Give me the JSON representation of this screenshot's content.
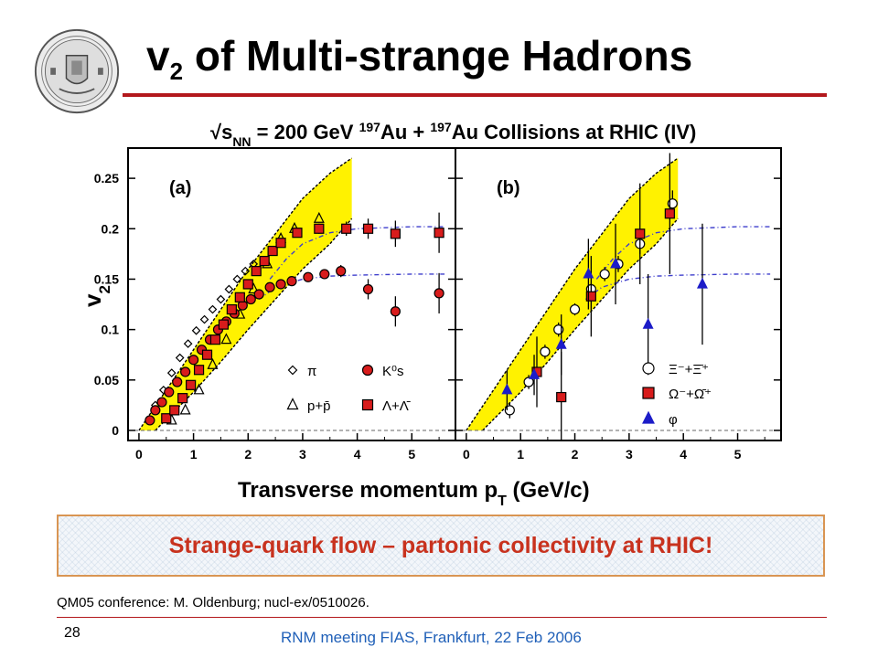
{
  "slide": {
    "title_main": "v",
    "title_sub": "2",
    "title_rest": " of Multi-strange Hadrons",
    "callout": "Strange-quark flow – partonic collectivity at RHIC!",
    "citation": "QM05 conference: M. Oldenburg; nucl-ex/0510026.",
    "page_number": "28",
    "footer": "RNM meeting FIAS, Frankfurt, 22 Feb 2006",
    "colors": {
      "accent_rule": "#b3181c",
      "callout_text": "#c8321e",
      "callout_border": "#d99553",
      "footer_text": "#2060b8"
    },
    "logo": "university-seal"
  },
  "chart_data": {
    "type": "scatter",
    "title": "√s_NN = 200 GeV 197Au + 197Au Collisions at RHIC (IV)",
    "title_parts": {
      "sqrt": "√s",
      "nn": "NN",
      "energy": " = 200 GeV ",
      "a1": "197",
      "au1": "Au + ",
      "a2": "197",
      "rest": "Au Collisions at RHIC (IV)"
    },
    "xlabel": "Transverse momentum p",
    "xlabel_sub": "T",
    "xlabel_unit": " (GeV/c)",
    "ylabel": "v",
    "ylabel_sub": "2",
    "ylim": [
      -0.01,
      0.28
    ],
    "yticks": [
      0,
      0.05,
      0.1,
      0.15,
      0.2,
      0.25
    ],
    "ytick_labels": [
      "0",
      "0.05",
      "0.1",
      "0.15",
      "0.2",
      "0.25"
    ],
    "xlim": [
      -0.2,
      5.8
    ],
    "xticks": [
      0,
      1,
      2,
      3,
      4,
      5
    ],
    "xtick_labels": [
      "0",
      "1",
      "2",
      "3",
      "4",
      "5"
    ],
    "zero_line": "dashed",
    "panels": [
      {
        "label": "(a)",
        "band": {
          "color": "#fff200",
          "upper": [
            [
              0.0,
              0.0
            ],
            [
              0.5,
              0.04
            ],
            [
              1.0,
              0.08
            ],
            [
              1.5,
              0.12
            ],
            [
              2.0,
              0.16
            ],
            [
              2.5,
              0.195
            ],
            [
              3.0,
              0.23
            ],
            [
              3.5,
              0.255
            ],
            [
              3.9,
              0.27
            ]
          ],
          "lower": [
            [
              0.3,
              0.0
            ],
            [
              1.0,
              0.038
            ],
            [
              1.5,
              0.068
            ],
            [
              2.0,
              0.1
            ],
            [
              2.5,
              0.13
            ],
            [
              3.0,
              0.16
            ],
            [
              3.5,
              0.185
            ],
            [
              3.9,
              0.21
            ]
          ]
        },
        "curves": [
          {
            "name": "meson-fit",
            "color": "#3d3dcc",
            "points": [
              [
                2.2,
                0.13
              ],
              [
                2.5,
                0.142
              ],
              [
                3.0,
                0.15
              ],
              [
                3.5,
                0.153
              ],
              [
                4.0,
                0.154
              ],
              [
                5.0,
                0.155
              ],
              [
                5.6,
                0.155
              ]
            ]
          },
          {
            "name": "baryon-fit",
            "color": "#3d3dcc",
            "points": [
              [
                2.4,
                0.15
              ],
              [
                2.7,
                0.17
              ],
              [
                3.0,
                0.185
              ],
              [
                3.5,
                0.196
              ],
              [
                4.0,
                0.2
              ],
              [
                5.0,
                0.202
              ],
              [
                5.6,
                0.202
              ]
            ]
          }
        ],
        "series": [
          {
            "name": "π",
            "marker": "diamond-open",
            "color": "#000000",
            "x": [
              0.3,
              0.45,
              0.6,
              0.75,
              0.9,
              1.05,
              1.2,
              1.35,
              1.5,
              1.65,
              1.8,
              1.95,
              2.1
            ],
            "y": [
              0.025,
              0.04,
              0.057,
              0.072,
              0.086,
              0.099,
              0.11,
              0.12,
              0.13,
              0.14,
              0.15,
              0.158,
              0.165
            ]
          },
          {
            "name": "p+p̄",
            "marker": "triangle-open",
            "color": "#000000",
            "x": [
              0.6,
              0.85,
              1.1,
              1.35,
              1.6,
              1.85,
              2.1,
              2.35,
              2.6,
              2.85,
              3.3
            ],
            "y": [
              0.01,
              0.02,
              0.04,
              0.065,
              0.09,
              0.115,
              0.14,
              0.165,
              0.19,
              0.2,
              0.21
            ]
          },
          {
            "name": "K⁰s",
            "marker": "circle-filled",
            "color": "#d81c1c",
            "x": [
              0.2,
              0.3,
              0.42,
              0.55,
              0.7,
              0.85,
              1.0,
              1.15,
              1.3,
              1.45,
              1.6,
              1.75,
              1.9,
              2.05,
              2.2,
              2.4,
              2.6,
              2.8,
              3.1,
              3.4,
              3.7,
              4.2,
              4.7,
              5.5
            ],
            "y": [
              0.01,
              0.02,
              0.028,
              0.038,
              0.048,
              0.058,
              0.07,
              0.08,
              0.09,
              0.1,
              0.108,
              0.116,
              0.124,
              0.13,
              0.135,
              0.142,
              0.145,
              0.148,
              0.152,
              0.155,
              0.158,
              0.14,
              0.118,
              0.136
            ],
            "yerr": [
              0.002,
              0.002,
              0.002,
              0.002,
              0.002,
              0.002,
              0.002,
              0.002,
              0.002,
              0.002,
              0.002,
              0.002,
              0.002,
              0.002,
              0.002,
              0.003,
              0.003,
              0.003,
              0.004,
              0.004,
              0.006,
              0.01,
              0.015,
              0.02
            ]
          },
          {
            "name": "Λ+Λ̄",
            "marker": "square-filled",
            "color": "#d81c1c",
            "x": [
              0.5,
              0.65,
              0.8,
              0.95,
              1.1,
              1.25,
              1.4,
              1.55,
              1.7,
              1.85,
              2.0,
              2.15,
              2.3,
              2.45,
              2.6,
              2.9,
              3.3,
              3.8,
              4.2,
              4.7,
              5.5
            ],
            "y": [
              0.012,
              0.02,
              0.032,
              0.045,
              0.06,
              0.075,
              0.09,
              0.105,
              0.12,
              0.132,
              0.145,
              0.158,
              0.168,
              0.178,
              0.186,
              0.196,
              0.2,
              0.2,
              0.2,
              0.195,
              0.196
            ],
            "yerr": [
              0.002,
              0.002,
              0.002,
              0.002,
              0.002,
              0.002,
              0.002,
              0.002,
              0.002,
              0.002,
              0.002,
              0.002,
              0.003,
              0.003,
              0.003,
              0.004,
              0.005,
              0.007,
              0.01,
              0.013,
              0.02
            ]
          }
        ]
      },
      {
        "label": "(b)",
        "band": {
          "color": "#fff200",
          "upper": [
            [
              0.0,
              0.0
            ],
            [
              0.5,
              0.04
            ],
            [
              1.0,
              0.08
            ],
            [
              1.5,
              0.12
            ],
            [
              2.0,
              0.16
            ],
            [
              2.5,
              0.195
            ],
            [
              3.0,
              0.23
            ],
            [
              3.5,
              0.255
            ],
            [
              3.9,
              0.27
            ]
          ],
          "lower": [
            [
              0.3,
              0.0
            ],
            [
              1.0,
              0.038
            ],
            [
              1.5,
              0.068
            ],
            [
              2.0,
              0.1
            ],
            [
              2.5,
              0.13
            ],
            [
              3.0,
              0.16
            ],
            [
              3.5,
              0.185
            ],
            [
              3.9,
              0.21
            ]
          ]
        },
        "curves": [
          {
            "name": "meson-fit",
            "color": "#3d3dcc",
            "points": [
              [
                2.2,
                0.13
              ],
              [
                2.5,
                0.142
              ],
              [
                3.0,
                0.15
              ],
              [
                3.5,
                0.153
              ],
              [
                4.0,
                0.154
              ],
              [
                5.0,
                0.155
              ],
              [
                5.6,
                0.155
              ]
            ]
          },
          {
            "name": "baryon-fit",
            "color": "#3d3dcc",
            "points": [
              [
                2.4,
                0.15
              ],
              [
                2.7,
                0.17
              ],
              [
                3.0,
                0.185
              ],
              [
                3.5,
                0.196
              ],
              [
                4.0,
                0.2
              ],
              [
                5.0,
                0.202
              ],
              [
                5.6,
                0.202
              ]
            ]
          }
        ],
        "series": [
          {
            "name": "Ξ⁻+Ξ̄⁺",
            "marker": "circle-open",
            "color": "#000000",
            "x": [
              0.8,
              1.15,
              1.45,
              1.7,
              2.0,
              2.3,
              2.55,
              2.8,
              3.2,
              3.8
            ],
            "y": [
              0.02,
              0.048,
              0.078,
              0.1,
              0.12,
              0.14,
              0.155,
              0.165,
              0.185,
              0.225
            ],
            "yerr": [
              0.008,
              0.007,
              0.007,
              0.007,
              0.006,
              0.006,
              0.007,
              0.008,
              0.01,
              0.013
            ]
          },
          {
            "name": "Ω⁻+Ω̄⁺",
            "marker": "square-filled",
            "color": "#d81c1c",
            "x": [
              1.3,
              1.75,
              2.3,
              3.2,
              3.75
            ],
            "y": [
              0.058,
              0.033,
              0.133,
              0.195,
              0.215
            ],
            "yerr": [
              0.035,
              0.045,
              0.04,
              0.05,
              0.06
            ]
          },
          {
            "name": "φ",
            "marker": "triangle-filled",
            "color": "#1c1cc8",
            "x": [
              0.75,
              1.25,
              1.75,
              2.25,
              2.75,
              3.35,
              4.35
            ],
            "y": [
              0.04,
              0.055,
              0.085,
              0.155,
              0.165,
              0.105,
              0.145
            ],
            "yerr": [
              0.02,
              0.02,
              0.03,
              0.035,
              0.04,
              0.05,
              0.06
            ]
          }
        ]
      }
    ],
    "legends": {
      "a": [
        {
          "marker": "diamond-open",
          "color": "#000000",
          "label": "π"
        },
        {
          "marker": "triangle-open",
          "color": "#000000",
          "label": "p+p̄"
        },
        {
          "marker": "circle-filled",
          "color": "#d81c1c",
          "label": "K⁰s"
        },
        {
          "marker": "square-filled",
          "color": "#d81c1c",
          "label": "Λ+Λ̄"
        }
      ],
      "b": [
        {
          "marker": "circle-open",
          "color": "#000000",
          "label": "Ξ⁻+Ξ̄⁺"
        },
        {
          "marker": "square-filled",
          "color": "#d81c1c",
          "label": "Ω⁻+Ω̄⁺"
        },
        {
          "marker": "triangle-filled",
          "color": "#1c1cc8",
          "label": "φ"
        }
      ]
    }
  }
}
